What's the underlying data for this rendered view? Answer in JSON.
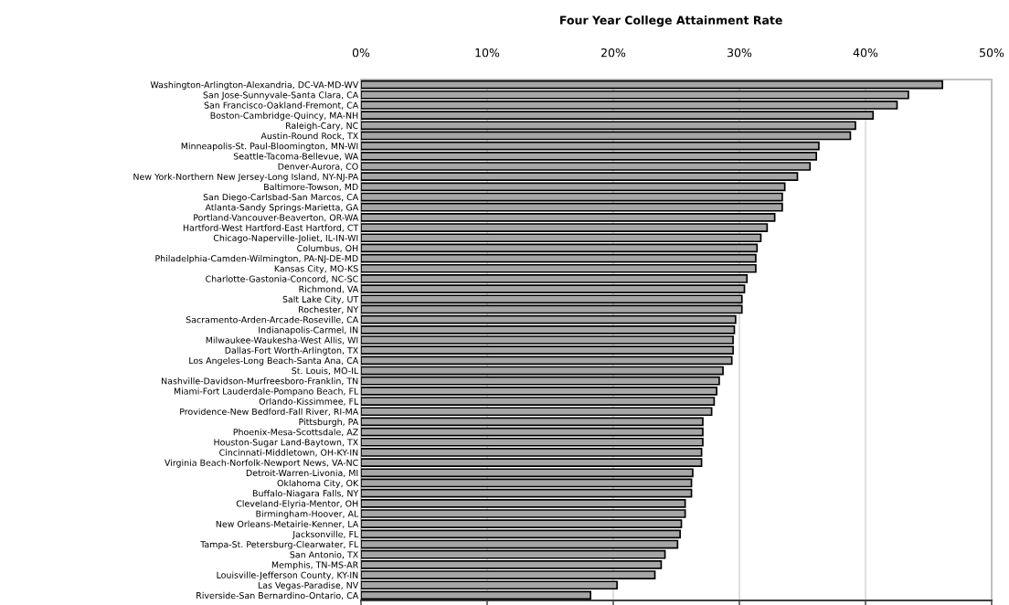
{
  "chart_data": {
    "type": "bar",
    "orientation": "horizontal",
    "title": "Four Year College Attainment Rate",
    "categories": [
      "Washington-Arlington-Alexandria, DC-VA-MD-WV",
      "San Jose-Sunnyvale-Santa Clara, CA",
      "San Francisco-Oakland-Fremont, CA",
      "Boston-Cambridge-Quincy, MA-NH",
      "Raleigh-Cary, NC",
      "Austin-Round Rock, TX",
      "Minneapolis-St. Paul-Bloomington, MN-WI",
      "Seattle-Tacoma-Bellevue, WA",
      "Denver-Aurora, CO",
      "New York-Northern New Jersey-Long Island, NY-NJ-PA",
      "Baltimore-Towson, MD",
      "San Diego-Carlsbad-San Marcos, CA",
      "Atlanta-Sandy Springs-Marietta, GA",
      "Portland-Vancouver-Beaverton, OR-WA",
      "Hartford-West Hartford-East Hartford, CT",
      "Chicago-Naperville-Joliet, IL-IN-WI",
      "Columbus, OH",
      "Philadelphia-Camden-Wilmington, PA-NJ-DE-MD",
      "Kansas City, MO-KS",
      "Charlotte-Gastonia-Concord, NC-SC",
      "Richmond, VA",
      "Salt Lake City, UT",
      "Rochester, NY",
      "Sacramento-Arden-Arcade-Roseville, CA",
      "Indianapolis-Carmel, IN",
      "Milwaukee-Waukesha-West Allis, WI",
      "Dallas-Fort Worth-Arlington, TX",
      "Los Angeles-Long Beach-Santa Ana, CA",
      "St. Louis, MO-IL",
      "Nashville-Davidson-Murfreesboro-Franklin, TN",
      "Miami-Fort Lauderdale-Pompano Beach, FL",
      "Orlando-Kissimmee, FL",
      "Providence-New Bedford-Fall River, RI-MA",
      "Pittsburgh, PA",
      "Phoenix-Mesa-Scottsdale, AZ",
      "Houston-Sugar Land-Baytown, TX",
      "Cincinnati-Middletown, OH-KY-IN",
      "Virginia Beach-Norfolk-Newport News, VA-NC",
      "Detroit-Warren-Livonia, MI",
      "Oklahoma City, OK",
      "Buffalo-Niagara Falls, NY",
      "Cleveland-Elyria-Mentor, OH",
      "Birmingham-Hoover, AL",
      "New Orleans-Metairie-Kenner, LA",
      "Jacksonville, FL",
      "Tampa-St. Petersburg-Clearwater, FL",
      "San Antonio, TX",
      "Memphis, TN-MS-AR",
      "Louisville-Jefferson County, KY-IN",
      "Las Vegas-Paradise, NV",
      "Riverside-San Bernardino-Ontario, CA"
    ],
    "values": [
      46.1,
      43.4,
      42.5,
      40.6,
      39.2,
      38.8,
      36.3,
      36.1,
      35.6,
      34.6,
      33.6,
      33.4,
      33.4,
      32.8,
      32.2,
      31.7,
      31.4,
      31.3,
      31.3,
      30.6,
      30.4,
      30.2,
      30.2,
      29.7,
      29.6,
      29.5,
      29.5,
      29.4,
      28.7,
      28.4,
      28.2,
      28.0,
      27.8,
      27.1,
      27.1,
      27.1,
      27.0,
      27.0,
      26.3,
      26.2,
      26.2,
      25.7,
      25.7,
      25.4,
      25.3,
      25.1,
      24.1,
      23.8,
      23.3,
      20.3,
      18.2
    ],
    "color": "#a6a6a6",
    "xlim": [
      0,
      50
    ],
    "xticks": [
      {
        "value": 0,
        "label": "0%"
      },
      {
        "value": 10,
        "label": "10%"
      },
      {
        "value": 20,
        "label": "20%"
      },
      {
        "value": 30,
        "label": "30%"
      },
      {
        "value": 40,
        "label": "40%"
      },
      {
        "value": 50,
        "label": "50%"
      }
    ],
    "grid": "x",
    "legend": false
  }
}
